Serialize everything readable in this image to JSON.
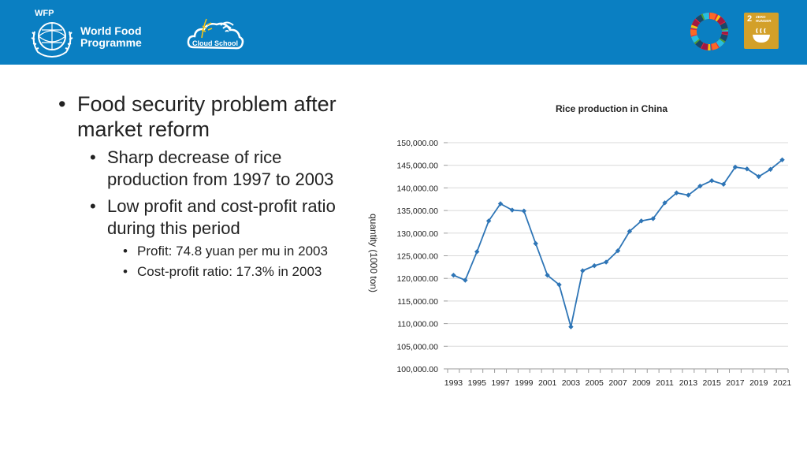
{
  "header": {
    "brand_small": "WFP",
    "brand_line1": "World Food",
    "brand_line2": "Programme",
    "cloud_label": "Cloud School",
    "sdg_number": "2",
    "sdg_small_line1": "ZERO",
    "sdg_small_line2": "HUNGER",
    "bg_color": "#0a7fc2"
  },
  "bullets": {
    "b1": "Food security problem after market reform",
    "b2a": "Sharp decrease of rice production from 1997 to 2003",
    "b2b": "Low profit and cost-profit ratio during this period",
    "b3a": "Profit: 74.8 yuan per mu in 2003",
    "b3b": "Cost-profit ratio: 17.3% in 2003"
  },
  "chart_data": {
    "type": "line",
    "title": "Rice production in China",
    "xlabel": "",
    "ylabel": "quantity (1000 ton)",
    "x": [
      1993,
      1994,
      1995,
      1996,
      1997,
      1998,
      1999,
      2000,
      2001,
      2002,
      2003,
      2004,
      2005,
      2006,
      2007,
      2008,
      2009,
      2010,
      2011,
      2012,
      2013,
      2014,
      2015,
      2016,
      2017,
      2018,
      2019,
      2020,
      2021
    ],
    "x_tick_labels": [
      "1993",
      "1995",
      "1997",
      "1999",
      "2001",
      "2003",
      "2005",
      "2007",
      "2009",
      "2011",
      "2013",
      "2015",
      "2017",
      "2019",
      "2021"
    ],
    "y_tick_labels": [
      "100,000.00",
      "105,000.00",
      "110,000.00",
      "115,000.00",
      "120,000.00",
      "125,000.00",
      "130,000.00",
      "135,000.00",
      "140,000.00",
      "145,000.00",
      "150,000.00"
    ],
    "ylim": [
      100000,
      150000
    ],
    "y_step": 5000,
    "grid": true,
    "line_color": "#2e75b6",
    "series": [
      {
        "values": [
          120700,
          119600,
          125900,
          132700,
          136500,
          135100,
          134900,
          127700,
          120700,
          118600,
          109300,
          121700,
          122800,
          123600,
          126100,
          130400,
          132700,
          133200,
          136700,
          138900,
          138400,
          140400,
          141600,
          140800,
          144600,
          144200,
          142500,
          144100,
          146200
        ]
      }
    ]
  }
}
